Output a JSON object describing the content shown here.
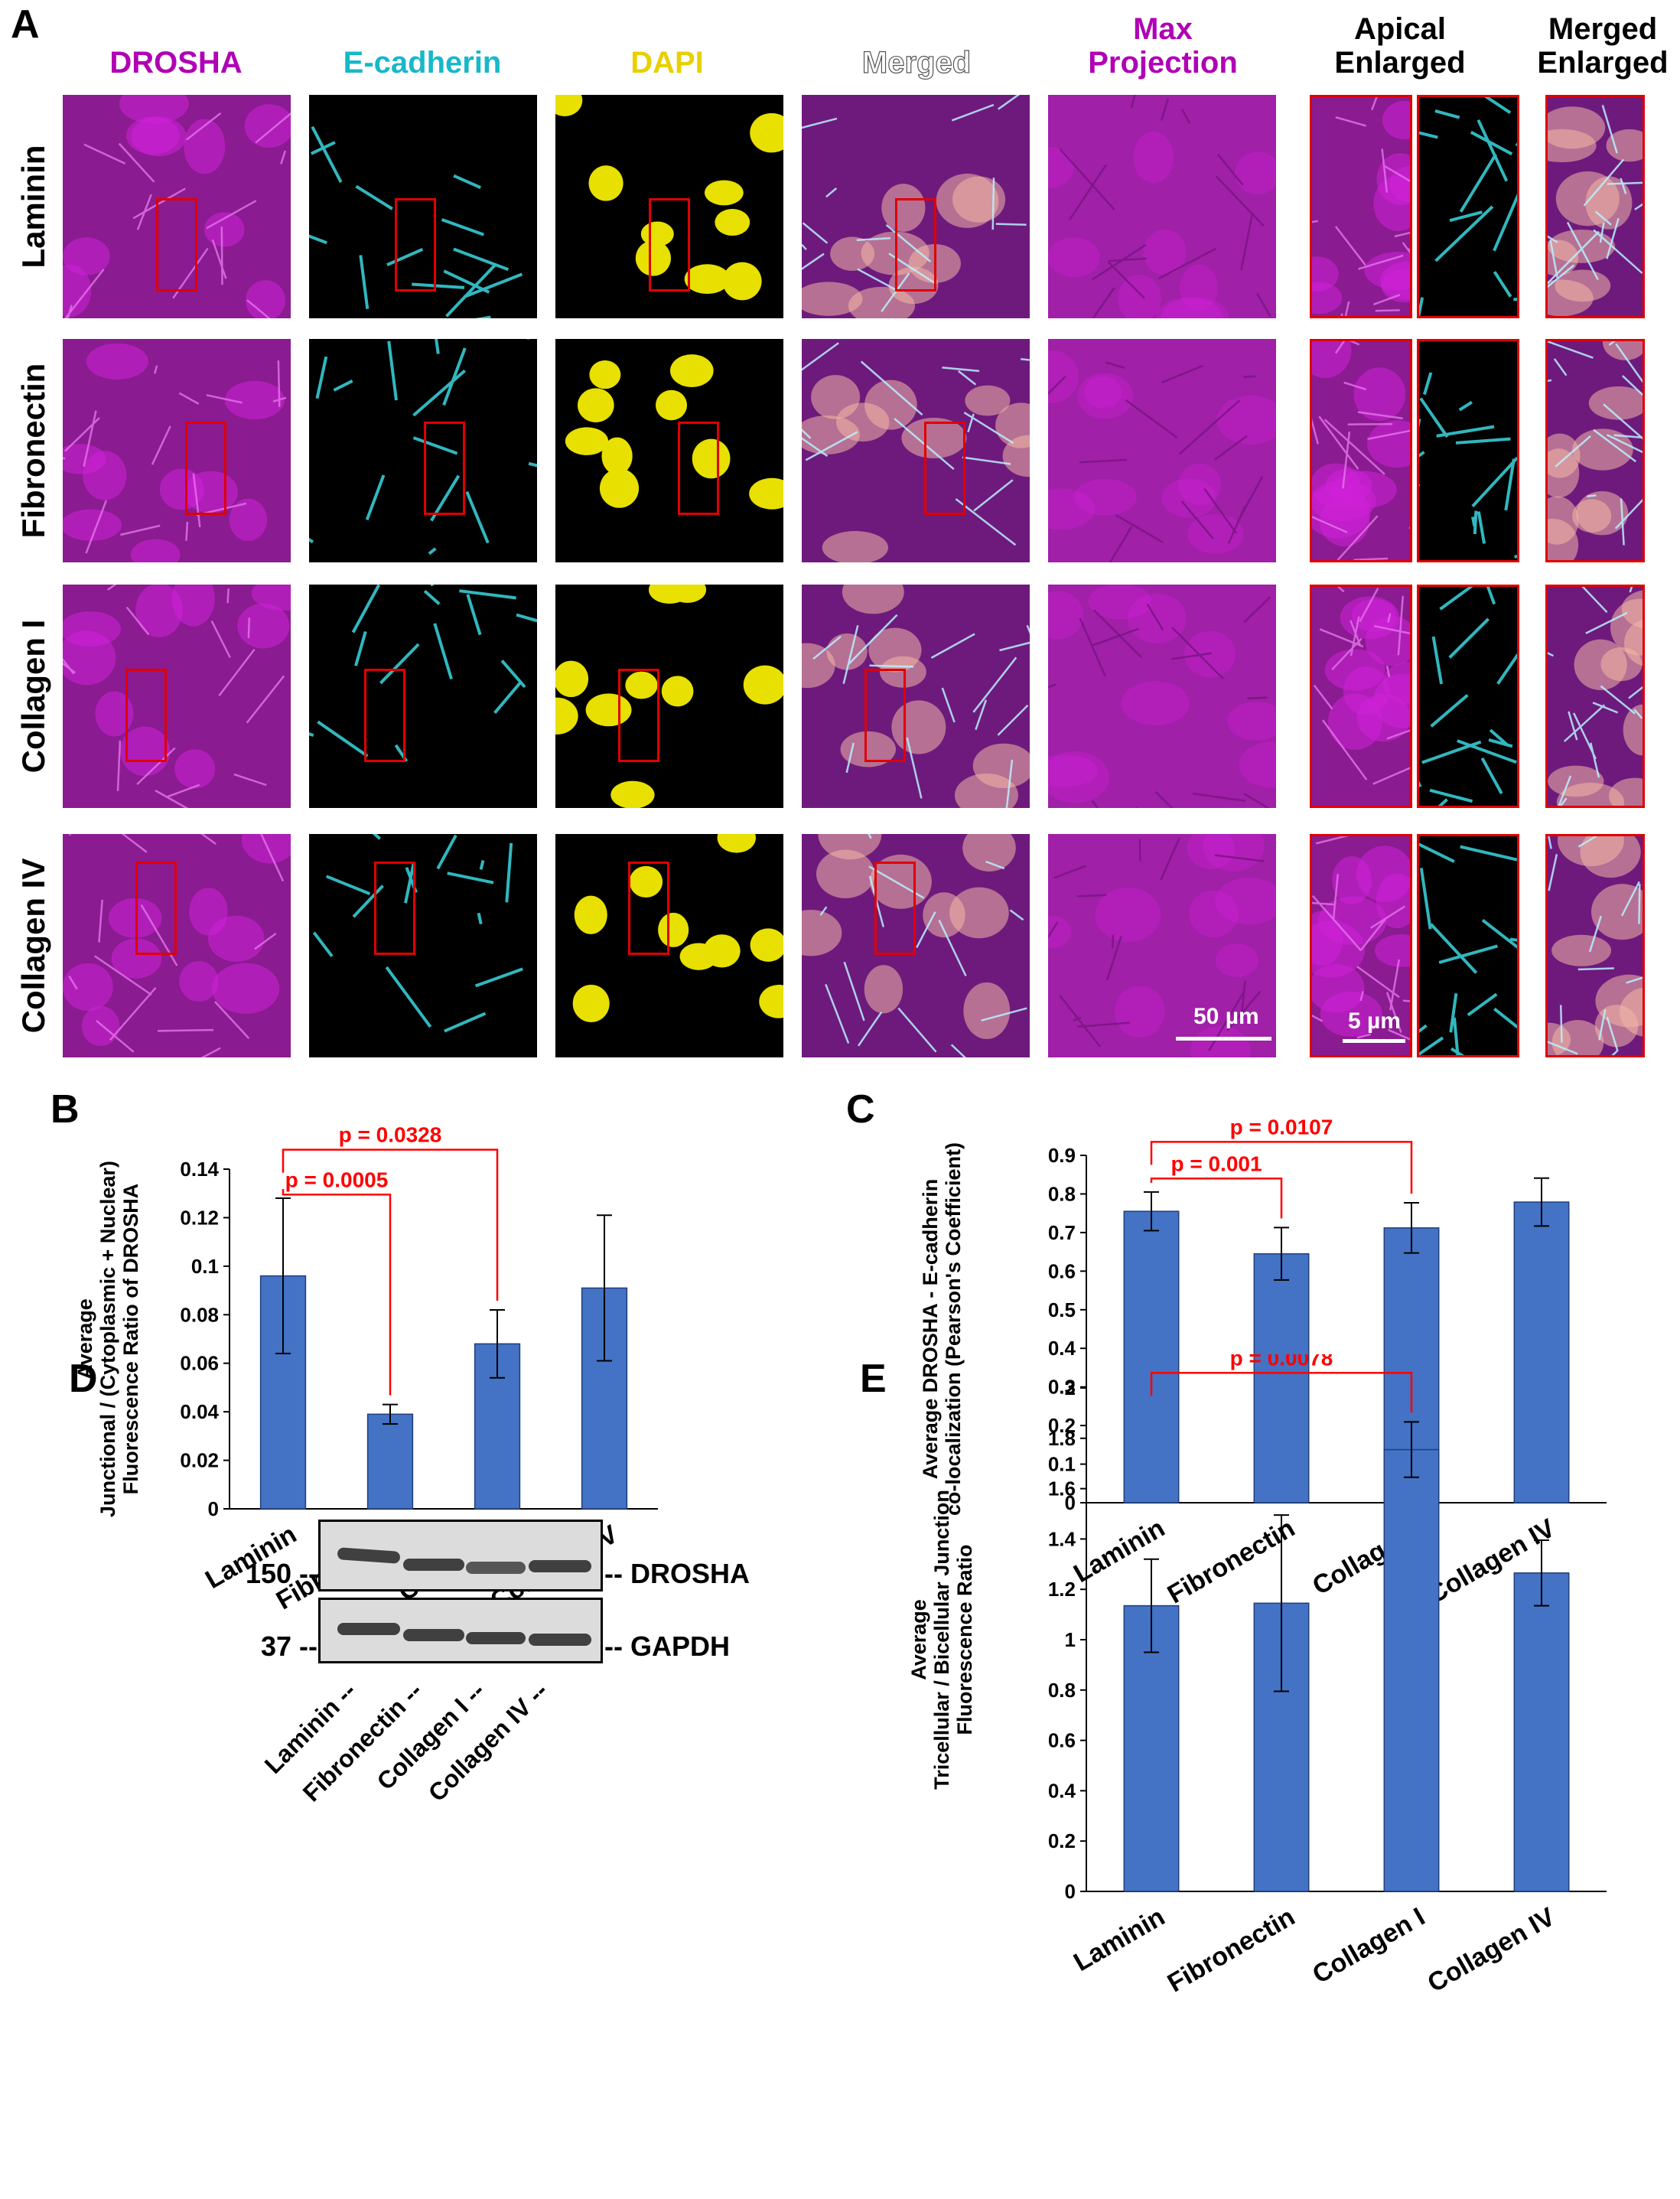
{
  "panel_labels": {
    "a": "A",
    "b": "B",
    "c": "C",
    "d": "D",
    "e": "E"
  },
  "panel_a": {
    "column_headers": [
      {
        "lines": [
          "DROSHA"
        ],
        "color": "#b000b5"
      },
      {
        "lines": [
          "E-cadherin"
        ],
        "color": "#17b8c9"
      },
      {
        "lines": [
          "DAPI"
        ],
        "color": "#e8d000"
      },
      {
        "lines": [
          "Merged"
        ],
        "color": "#ffffff"
      },
      {
        "lines": [
          "Max",
          "Projection"
        ],
        "color": "#b000b5"
      },
      {
        "lines": [
          "Apical",
          "Enlarged"
        ],
        "color": "#000000"
      },
      {
        "lines": [
          "Merged",
          "Enlarged"
        ],
        "color": "#000000"
      }
    ],
    "row_labels": [
      "Laminin",
      "Fibronectin",
      "Collagen I",
      "Collagen IV"
    ],
    "scale_bar_main": "50 µm",
    "scale_bar_enlarged": "5 µm",
    "channel_colors": {
      "drosha": "#d020d8",
      "ecad": "#3ad7e0",
      "dapi": "#e8e000",
      "roi": "#e00000"
    }
  },
  "western_blot": {
    "bands": [
      {
        "marker": "150 --",
        "label": "-- DROSHA"
      },
      {
        "marker": "37 --",
        "label": "-- GAPDH"
      }
    ],
    "lanes": [
      "Laminin --",
      "Fibronectin --",
      "Collagen I --",
      "Collagen IV --"
    ]
  },
  "chart_data": [
    {
      "panel": "B",
      "type": "bar",
      "categories": [
        "Laminin",
        "Fibronectin",
        "Collagen I",
        "Collagen IV"
      ],
      "values": [
        0.096,
        0.039,
        0.068,
        0.091
      ],
      "errors": [
        0.032,
        0.004,
        0.014,
        0.03
      ],
      "ylabel": [
        "Average",
        "Junctional / (Cytoplasmic + Nuclear)",
        "Fluorescence Ratio of DROSHA"
      ],
      "ylim": [
        0,
        0.14
      ],
      "yticks": [
        0,
        0.02,
        0.04,
        0.06,
        0.08,
        0.1,
        0.12,
        0.14
      ],
      "ytick_labels": [
        "0",
        "0.02",
        "0.04",
        "0.06",
        "0.08",
        "0.1",
        "0.12",
        "0.14"
      ],
      "bar_color": "#4472c4",
      "annotations": [
        {
          "from": 0,
          "to": 1,
          "text": "p = 0.0005",
          "level": 0.1295
        },
        {
          "from": 0,
          "to": 2,
          "text": "p = 0.0328",
          "level": 0.148
        }
      ],
      "annotation_color": "#ff0000"
    },
    {
      "panel": "C",
      "type": "bar",
      "categories": [
        "Laminin",
        "Fibronectin",
        "Collagen I",
        "Collagen IV"
      ],
      "values": [
        0.755,
        0.645,
        0.712,
        0.779
      ],
      "errors": [
        0.05,
        0.068,
        0.065,
        0.062
      ],
      "ylabel": [
        "Average DROSHA - E-cadherin",
        "co-localization (Pearson's Coefficient)"
      ],
      "ylim": [
        0,
        0.9
      ],
      "yticks": [
        0,
        0.1,
        0.2,
        0.3,
        0.4,
        0.5,
        0.6,
        0.7,
        0.8,
        0.9
      ],
      "ytick_labels": [
        "0",
        "0.1",
        "0.2",
        "0.3",
        "0.4",
        "0.5",
        "0.6",
        "0.7",
        "0.8",
        "0.9"
      ],
      "bar_color": "#4472c4",
      "annotations": [
        {
          "from": 0,
          "to": 1,
          "text": "p = 0.001",
          "level": 0.84
        },
        {
          "from": 0,
          "to": 2,
          "text": "p = 0.0107",
          "level": 0.935
        }
      ],
      "annotation_color": "#ff0000"
    },
    {
      "panel": "E",
      "type": "bar",
      "categories": [
        "Laminin",
        "Fibronectin",
        "Collagen I",
        "Collagen IV"
      ],
      "values": [
        1.135,
        1.145,
        1.755,
        1.265
      ],
      "errors": [
        0.185,
        0.35,
        0.11,
        0.13
      ],
      "ylabel": [
        "Average",
        "Tricellular / Bicellular Junction",
        "Fluorescence Ratio"
      ],
      "ylim": [
        0,
        2
      ],
      "yticks": [
        0,
        0.2,
        0.4,
        0.6,
        0.8,
        1,
        1.2,
        1.4,
        1.6,
        1.8,
        2
      ],
      "ytick_labels": [
        "0",
        "0.2",
        "0.4",
        "0.6",
        "0.8",
        "1",
        "1.2",
        "1.4",
        "1.6",
        "1.8",
        "2"
      ],
      "bar_color": "#4472c4",
      "annotations": [
        {
          "from": 0,
          "to": 2,
          "text": "p = 0.0078",
          "level": 2.06
        }
      ],
      "annotation_color": "#ff0000"
    }
  ]
}
